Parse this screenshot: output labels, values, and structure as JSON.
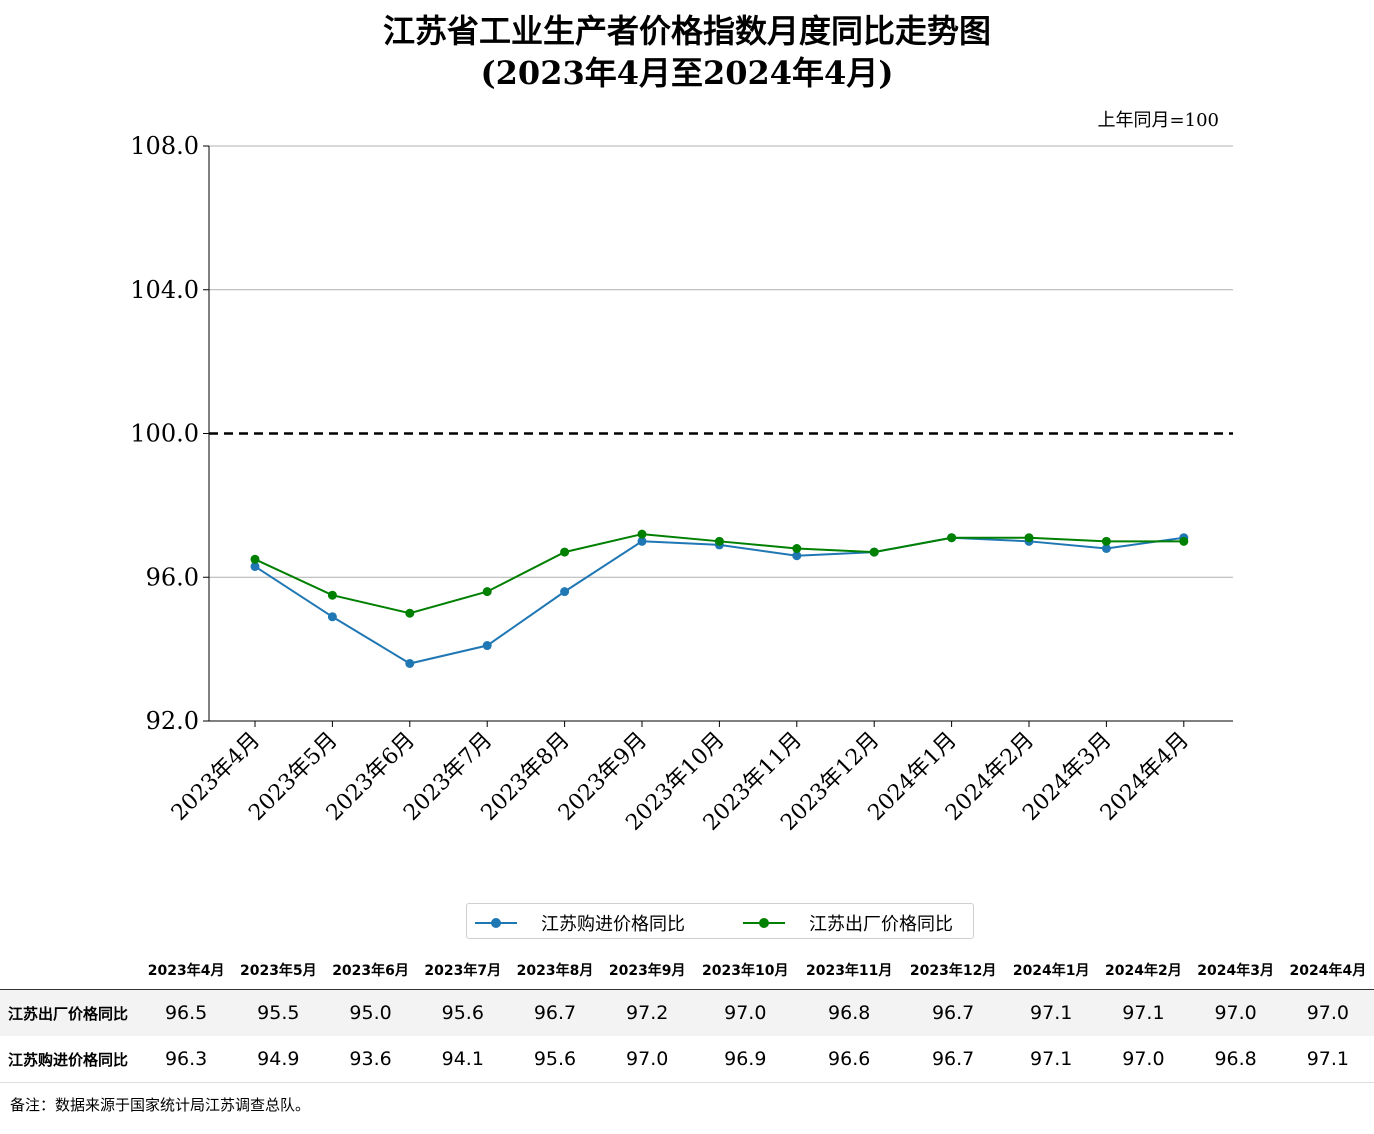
{
  "title_line1": "江苏省工业生产者价格指数月度同比走势图",
  "title_line2": "(2023年4月至2024年4月)",
  "unit_note": "上年同月=100",
  "colors": {
    "purchase": "#1f77b4",
    "factory": "#008000",
    "baseline": "#000000",
    "grid": "#b0b0b0"
  },
  "chart_data": {
    "type": "line",
    "categories": [
      "2023年4月",
      "2023年5月",
      "2023年6月",
      "2023年7月",
      "2023年8月",
      "2023年9月",
      "2023年10月",
      "2023年11月",
      "2023年12月",
      "2024年1月",
      "2024年2月",
      "2024年3月",
      "2024年4月"
    ],
    "series": [
      {
        "name": "江苏购进价格同比",
        "color": "#1f77b4",
        "values": [
          96.3,
          94.9,
          93.6,
          94.1,
          95.6,
          97.0,
          96.9,
          96.6,
          96.7,
          97.1,
          97.0,
          96.8,
          97.1
        ]
      },
      {
        "name": "江苏出厂价格同比",
        "color": "#008000",
        "values": [
          96.5,
          95.5,
          95.0,
          95.6,
          96.7,
          97.2,
          97.0,
          96.8,
          96.7,
          97.1,
          97.1,
          97.0,
          97.0
        ]
      }
    ],
    "ylim": [
      92.0,
      108.0
    ],
    "yticks": [
      "92.0",
      "96.0",
      "100.0",
      "104.0",
      "108.0"
    ],
    "reference_line": 100.0,
    "grid": "horizontal",
    "legend_position": "bottom-center"
  },
  "table": {
    "headers": [
      "2023年4月",
      "2023年5月",
      "2023年6月",
      "2023年7月",
      "2023年8月",
      "2023年9月",
      "2023年10月",
      "2023年11月",
      "2023年12月",
      "2024年1月",
      "2024年2月",
      "2024年3月",
      "2024年4月"
    ],
    "rows": [
      {
        "label": "江苏出厂价格同比",
        "values": [
          "96.5",
          "95.5",
          "95.0",
          "95.6",
          "96.7",
          "97.2",
          "97.0",
          "96.8",
          "96.7",
          "97.1",
          "97.1",
          "97.0",
          "97.0"
        ]
      },
      {
        "label": "江苏购进价格同比",
        "values": [
          "96.3",
          "94.9",
          "93.6",
          "94.1",
          "95.6",
          "97.0",
          "96.9",
          "96.6",
          "96.7",
          "97.1",
          "97.0",
          "96.8",
          "97.1"
        ]
      }
    ]
  },
  "footnote": "备注：数据来源于国家统计局江苏调查总队。"
}
